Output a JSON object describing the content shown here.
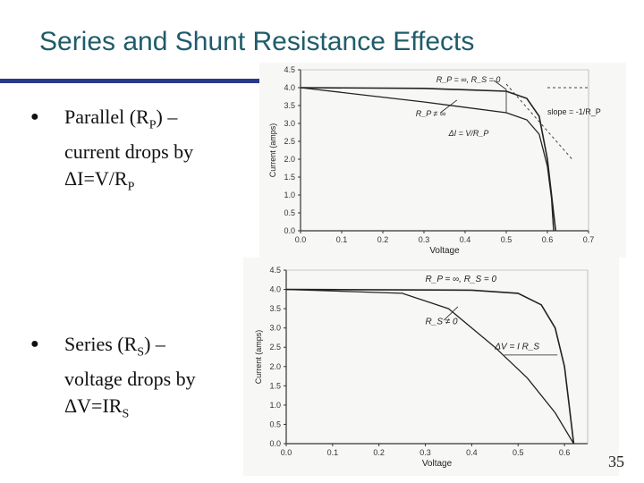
{
  "slide": {
    "title": "Series and Shunt Resistance Effects",
    "page_number": "35"
  },
  "bullets": [
    {
      "line1_a": "Parallel (R",
      "line1_sub": "P",
      "line1_b": ") –",
      "line2": "current drops by",
      "line3_a": "ΔI=V/R",
      "line3_sub": "P"
    },
    {
      "line1_a": "Series (R",
      "line1_sub": "S",
      "line1_b": ") –",
      "line2": "voltage drops by",
      "line3_a": "ΔV=IR",
      "line3_sub": "S"
    }
  ],
  "figure1": {
    "ylabel": "Current (amps)",
    "xlabel": "Voltage",
    "yticks": [
      "0.0",
      "0.5",
      "1.0",
      "1.5",
      "2.0",
      "2.5",
      "3.0",
      "3.5",
      "4.0",
      "4.5"
    ],
    "xticks": [
      "0.0",
      "0.1",
      "0.2",
      "0.3",
      "0.4",
      "0.5",
      "0.6",
      "0.7"
    ],
    "annotation_ideal": "R_P = ∞, R_S = 0",
    "annotation_rp": "R_P ≠ ∞",
    "annotation_delta": "ΔI = V/R_P",
    "annotation_slope": "slope = -1/R_P"
  },
  "figure2": {
    "ylabel": "Current (amps)",
    "xlabel": "Voltage",
    "yticks": [
      "0.0",
      "0.5",
      "1.0",
      "1.5",
      "2.0",
      "2.5",
      "3.0",
      "3.5",
      "4.0",
      "4.5"
    ],
    "xticks": [
      "0.0",
      "0.1",
      "0.2",
      "0.3",
      "0.4",
      "0.5",
      "0.6"
    ],
    "annotation_ideal": "R_P = ∞, R_S = 0",
    "annotation_rs": "R_S ≠ 0",
    "annotation_delta": "ΔV = I R_S"
  },
  "chart_data": [
    {
      "type": "line",
      "title": "",
      "xlabel": "Voltage",
      "ylabel": "Current (amps)",
      "xlim": [
        0,
        0.7
      ],
      "ylim": [
        0,
        4.5
      ],
      "series": [
        {
          "name": "R_P = ∞, R_S = 0",
          "x": [
            0,
            0.3,
            0.5,
            0.55,
            0.58,
            0.6,
            0.61,
            0.62
          ],
          "y": [
            4.0,
            3.98,
            3.9,
            3.7,
            3.2,
            2.0,
            1.0,
            0.0
          ]
        },
        {
          "name": "R_P ≠ ∞",
          "x": [
            0,
            0.3,
            0.5,
            0.55,
            0.58,
            0.6,
            0.61,
            0.615
          ],
          "y": [
            4.0,
            3.6,
            3.3,
            3.1,
            2.7,
            1.8,
            0.9,
            0.0
          ]
        }
      ]
    },
    {
      "type": "line",
      "title": "",
      "xlabel": "Voltage",
      "ylabel": "Current (amps)",
      "xlim": [
        0,
        0.65
      ],
      "ylim": [
        0,
        4.5
      ],
      "series": [
        {
          "name": "R_P = ∞, R_S = 0",
          "x": [
            0,
            0.4,
            0.5,
            0.55,
            0.58,
            0.6,
            0.61,
            0.62
          ],
          "y": [
            4.0,
            3.98,
            3.9,
            3.6,
            3.0,
            2.0,
            1.0,
            0.0
          ]
        },
        {
          "name": "R_S ≠ 0",
          "x": [
            0,
            0.25,
            0.35,
            0.45,
            0.52,
            0.58,
            0.62
          ],
          "y": [
            4.0,
            3.9,
            3.5,
            2.5,
            1.7,
            0.8,
            0.0
          ]
        }
      ]
    }
  ]
}
